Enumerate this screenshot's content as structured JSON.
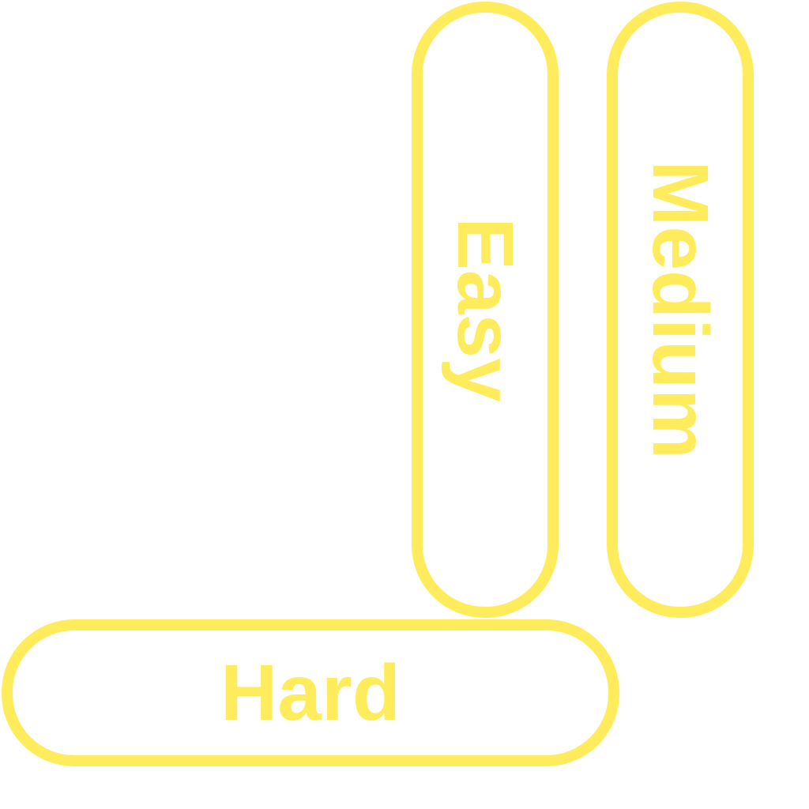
{
  "buttons": {
    "easy": {
      "label": "Easy"
    },
    "medium": {
      "label": "Medium"
    },
    "hard": {
      "label": "Hard"
    }
  },
  "colors": {
    "accent": "#FFEC5C",
    "background": "#FFFFFF"
  }
}
